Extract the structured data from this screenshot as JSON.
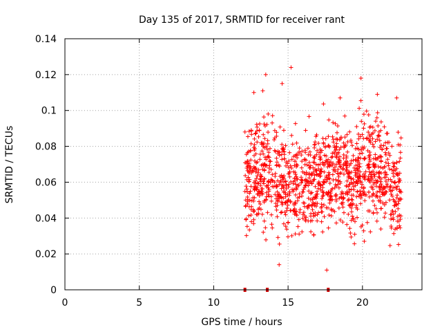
{
  "chart_data": {
    "type": "scatter",
    "title": "Day 135 of 2017, SRMTID for receiver rant",
    "xlabel": "GPS time / hours",
    "ylabel": "SRMTID / TECUs",
    "xlim": [
      0,
      24
    ],
    "ylim": [
      0,
      0.14
    ],
    "x_ticks": [
      0,
      5,
      10,
      15,
      20
    ],
    "x_tick_labels": [
      "0",
      "5",
      "10",
      "15",
      "20"
    ],
    "y_ticks": [
      0,
      0.02,
      0.04,
      0.06,
      0.08,
      0.1,
      0.12,
      0.14
    ],
    "y_tick_labels": [
      "0",
      "0.02",
      "0.04",
      "0.06",
      "0.08",
      "0.1",
      "0.12",
      "0.14"
    ],
    "grid": true,
    "marker": "+",
    "color": "#ff0000",
    "marker_color_dark": "#cc0000",
    "x_range_data": [
      12.1,
      22.6
    ],
    "y_range_data": [
      0.01,
      0.124
    ],
    "highlighted_points": [
      {
        "x": 13.5,
        "y": 0.12
      },
      {
        "x": 15.2,
        "y": 0.124
      },
      {
        "x": 19.9,
        "y": 0.118
      },
      {
        "x": 14.6,
        "y": 0.115
      },
      {
        "x": 17.6,
        "y": 0.011
      },
      {
        "x": 14.4,
        "y": 0.014
      },
      {
        "x": 13.3,
        "y": 0.111
      },
      {
        "x": 12.7,
        "y": 0.11
      },
      {
        "x": 21.0,
        "y": 0.109
      },
      {
        "x": 22.3,
        "y": 0.107
      },
      {
        "x": 18.5,
        "y": 0.107
      }
    ],
    "baseline_markers_x": [
      12.1,
      13.6,
      17.7
    ]
  }
}
